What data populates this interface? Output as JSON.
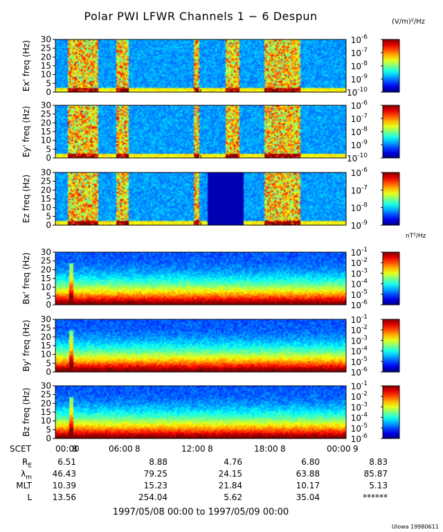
{
  "title": "Polar PWI LFWR Channels 1 − 6 Despun",
  "units": {
    "electric": "(V/m)²/Hz",
    "magnetic": "nT²/Hz"
  },
  "chart_data": {
    "type": "heatmap",
    "title": "Polar PWI LFWR Channels 1 − 6 Despun",
    "x_range_hours": [
      0,
      24
    ],
    "x_tick_hours": [
      0,
      6,
      12,
      18,
      24
    ],
    "x_tick_labels": [
      "00:00",
      "06:00",
      "12:00",
      "18:00",
      "00:00"
    ],
    "day_labels": [
      "8",
      "8",
      "8",
      "8",
      "9"
    ],
    "x_axis_label": "SCET",
    "y_ticks": [
      0,
      5,
      10,
      15,
      20,
      25,
      30
    ],
    "panels": [
      {
        "ylabel": "Ex' freq (Hz)",
        "ylim": [
          0,
          30
        ],
        "cbar_exponents": [
          -6,
          -7,
          -8,
          -9,
          -10
        ],
        "cbar_range": [
          -10,
          -6
        ]
      },
      {
        "ylabel": "Ey' freq (Hz)",
        "ylim": [
          0,
          30
        ],
        "cbar_exponents": [
          -6,
          -7,
          -8,
          -9,
          -10
        ],
        "cbar_range": [
          -10,
          -6
        ]
      },
      {
        "ylabel": "Ez freq (Hz)",
        "ylim": [
          0,
          30
        ],
        "cbar_exponents": [
          -6,
          -7,
          -8,
          -9
        ],
        "cbar_range": [
          -9,
          -6
        ]
      },
      {
        "ylabel": "Bx' freq (Hz)",
        "ylim": [
          0,
          30
        ],
        "cbar_exponents": [
          -1,
          -2,
          -3,
          -4,
          -5,
          -6
        ],
        "cbar_range": [
          -6,
          -1
        ]
      },
      {
        "ylabel": "By' freq (Hz)",
        "ylim": [
          0,
          30
        ],
        "cbar_exponents": [
          -1,
          -2,
          -3,
          -4,
          -5,
          -6
        ],
        "cbar_range": [
          -6,
          -1
        ]
      },
      {
        "ylabel": "Bz freq (Hz)",
        "ylim": [
          0,
          30
        ],
        "cbar_exponents": [
          -1,
          -2,
          -3,
          -4,
          -5,
          -6
        ],
        "cbar_range": [
          -6,
          -1
        ]
      }
    ],
    "ephemeris": [
      {
        "label": "R",
        "sub": "E",
        "values": [
          "6.51",
          "8.88",
          "4.76",
          "6.80",
          "8.83"
        ]
      },
      {
        "label": "λ",
        "sub": "m",
        "values": [
          "46.43",
          "79.25",
          "24.15",
          "63.88",
          "85.87"
        ]
      },
      {
        "label": "MLT",
        "sub": "",
        "values": [
          "10.39",
          "15.23",
          "21.84",
          "10.17",
          "5.13"
        ]
      },
      {
        "label": "L",
        "sub": "",
        "values": [
          "13.56",
          "254.04",
          "5.62",
          "35.04",
          "******"
        ]
      }
    ]
  },
  "footer": "1997/05/08 00:00 to 1997/05/09 00:00",
  "credit": "UIowa 19980611"
}
